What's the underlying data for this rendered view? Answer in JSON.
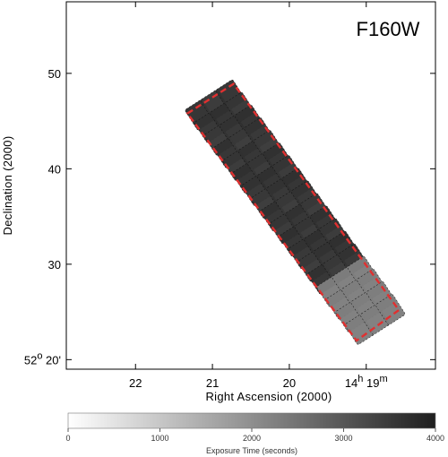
{
  "chart_data": {
    "type": "heatmap",
    "title": "F160W",
    "xlabel": "Right Ascension (2000)",
    "ylabel": "Declination (2000)",
    "x_ticks": [
      {
        "value": 22,
        "label": "22"
      },
      {
        "value": 21,
        "label": "21"
      },
      {
        "value": 20,
        "label": "20"
      },
      {
        "value": 19,
        "label": "14h 19m",
        "main": "14",
        "sup1": "h",
        "mid": " 19",
        "sup2": "m"
      }
    ],
    "y_ticks": [
      {
        "value": 50,
        "label": "50"
      },
      {
        "value": 40,
        "label": "40"
      },
      {
        "value": 30,
        "label": "30"
      },
      {
        "value": 20,
        "label": "52o 20'",
        "main": "52",
        "sup": "o",
        "rest": " 20'"
      }
    ],
    "xlim": [
      22.9,
      18.1
    ],
    "ylim": [
      19,
      57.5
    ],
    "colorbar": {
      "label": "Exposure Time (seconds)",
      "range": [
        0,
        4000
      ],
      "ticks": [
        0,
        1000,
        2000,
        3000,
        4000
      ]
    },
    "field": {
      "corners_radec": [
        [
          21.325,
          45.8
        ],
        [
          20.725,
          48.9
        ],
        [
          18.575,
          25.2
        ],
        [
          19.125,
          22.0
        ]
      ],
      "columns": 3,
      "rows": 18,
      "exposure_main_seconds": 3700,
      "exposure_end_seconds": 2300,
      "end_rows": 4
    },
    "grid": false,
    "colors": {
      "footprint_outline": "#e03030",
      "tile_high": "#2a2a2a",
      "tile_low": "#6c6c6c"
    }
  }
}
